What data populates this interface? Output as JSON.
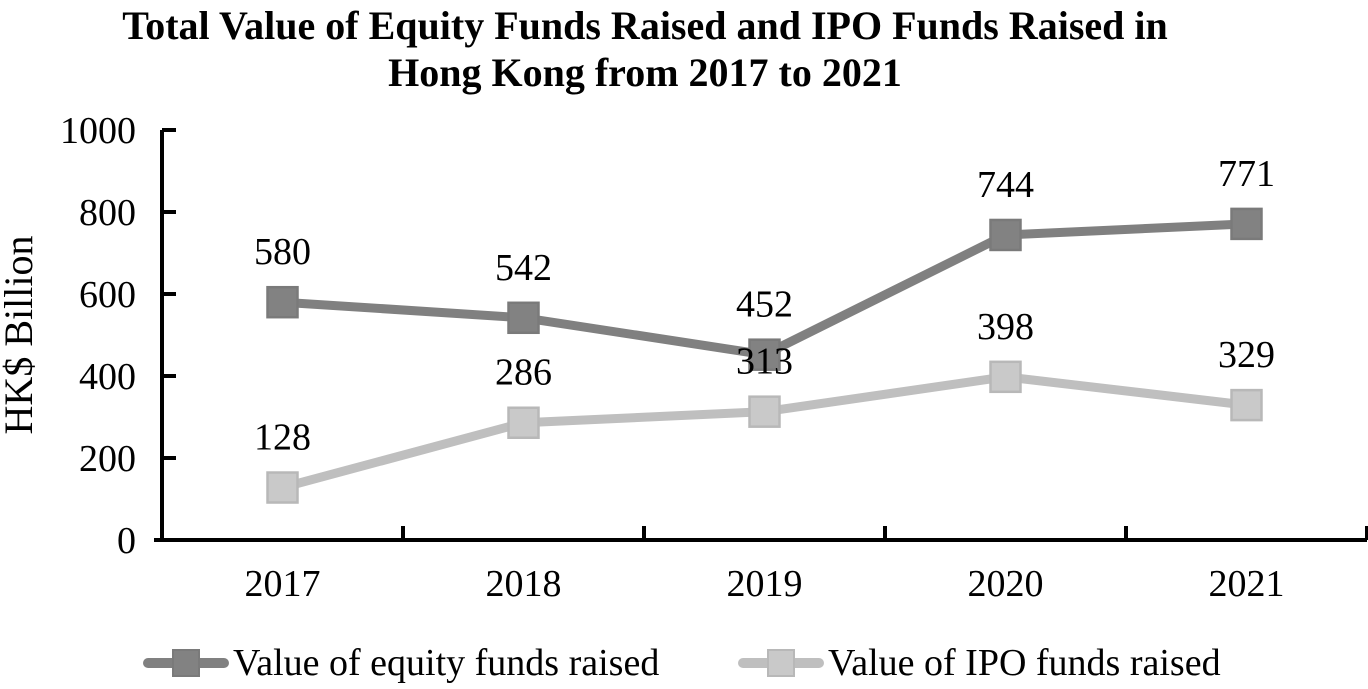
{
  "chart_data": {
    "type": "line",
    "title": "Total Value of Equity Funds Raised and IPO Funds Raised in\nHong Kong from 2017 to 2021",
    "xlabel": "",
    "ylabel": "HK$ Billion",
    "categories": [
      "2017",
      "2018",
      "2019",
      "2020",
      "2021"
    ],
    "series": [
      {
        "name": "Value of equity funds raised",
        "values": [
          580,
          542,
          452,
          744,
          771
        ],
        "color": "#808080",
        "marker": "square",
        "marker_fill": "#828282",
        "marker_border": "#7a7a7a"
      },
      {
        "name": "Value of IPO funds raised",
        "values": [
          128,
          286,
          313,
          398,
          329
        ],
        "color": "#bfbfbf",
        "marker": "square",
        "marker_fill": "#c9c9c9",
        "marker_border": "#b8b8b8"
      }
    ],
    "ylim": [
      0,
      1000
    ],
    "yticks": [
      0,
      200,
      400,
      600,
      800,
      1000
    ],
    "grid": "off",
    "legend_position": "bottom",
    "data_labels": "above-points"
  },
  "colors": {
    "background": "#ffffff",
    "axis": "#000000",
    "text": "#000000"
  }
}
